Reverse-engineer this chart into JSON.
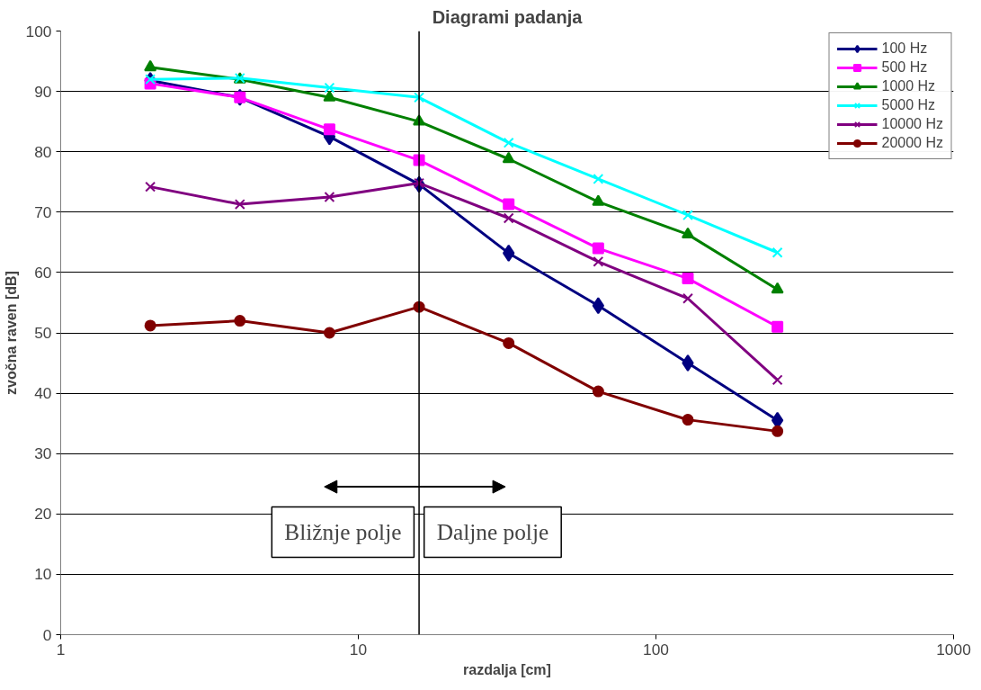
{
  "chart_data": {
    "type": "line",
    "title": "Diagrami padanja",
    "xlabel": "razdalja [cm]",
    "ylabel": "zvočna raven [dB]",
    "x": [
      2,
      4,
      8,
      16,
      32,
      64,
      128,
      256
    ],
    "series": [
      {
        "name": "100 Hz",
        "color": "#000080",
        "marker": "diamond",
        "values": [
          91.8,
          89,
          82.5,
          74.6,
          63.2,
          54.5,
          45,
          35.5
        ]
      },
      {
        "name": "500 Hz",
        "color": "#ff00ff",
        "marker": "square",
        "values": [
          91.3,
          89,
          83.7,
          78.6,
          71.3,
          64,
          59,
          51
        ]
      },
      {
        "name": "1000 Hz",
        "color": "#008000",
        "marker": "triangle",
        "values": [
          94,
          92,
          89,
          85,
          78.8,
          71.7,
          66.3,
          57.2
        ]
      },
      {
        "name": "5000 Hz",
        "color": "#00ffff",
        "marker": "cross",
        "values": [
          92,
          92.2,
          90.6,
          89,
          81.5,
          75.5,
          69.5,
          63.3
        ]
      },
      {
        "name": "10000 Hz",
        "color": "#800080",
        "marker": "cross",
        "values": [
          74.2,
          71.3,
          72.5,
          74.8,
          69,
          61.8,
          55.7,
          42.2
        ]
      },
      {
        "name": "20000 Hz",
        "color": "#800000",
        "marker": "circle",
        "values": [
          51.2,
          52,
          50,
          54.3,
          48.3,
          40.3,
          35.6,
          33.7
        ]
      }
    ],
    "log": "x",
    "xlim": [
      1,
      1000
    ],
    "xticks": [
      1,
      10,
      100,
      1000
    ],
    "ylim": [
      0,
      100
    ],
    "yticks": [
      0,
      10,
      20,
      30,
      40,
      50,
      60,
      70,
      80,
      90,
      100
    ],
    "grid": "y",
    "legend": "top right",
    "line_style": "solid",
    "ref_lines": [
      {
        "axis": "x",
        "value": 16,
        "color": "#000000"
      }
    ],
    "annotations": [
      "Bližnje polje",
      "Daljne polje"
    ]
  }
}
